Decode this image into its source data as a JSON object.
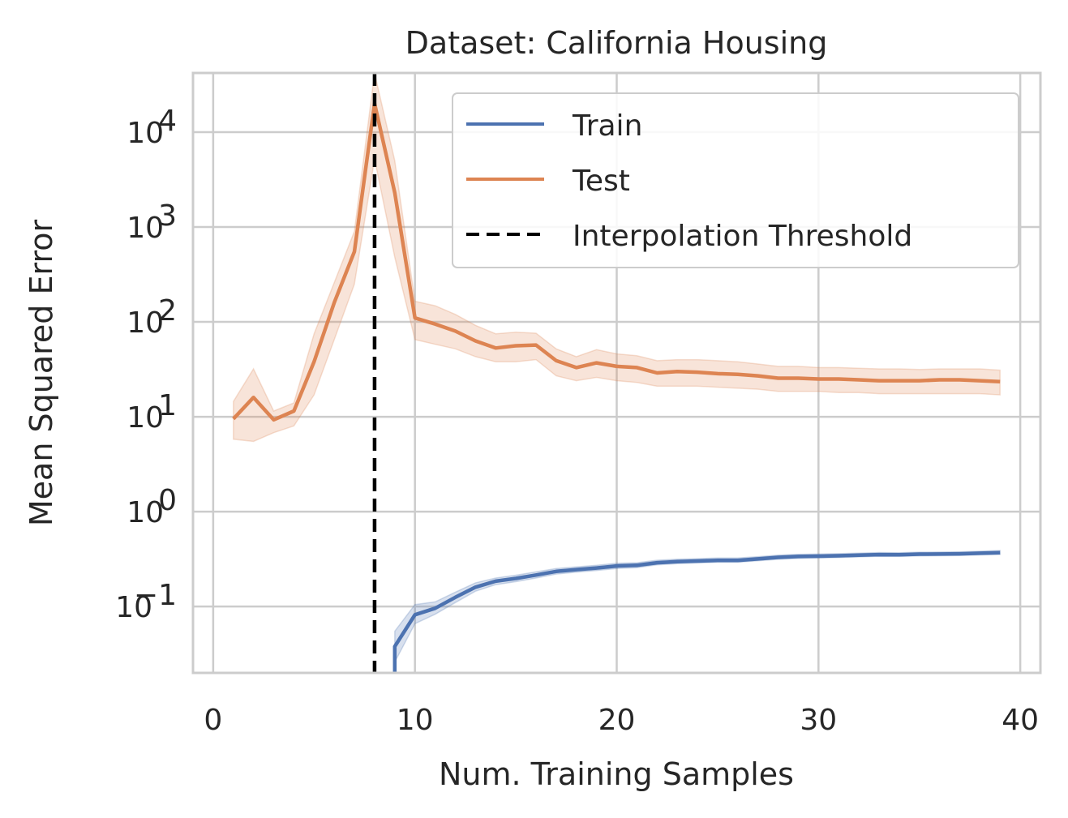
{
  "chart_data": {
    "type": "line",
    "title": "Dataset: California Housing",
    "xlabel": "Num. Training Samples",
    "ylabel": "Mean Squared Error",
    "yscale": "log",
    "xlim": [
      -1,
      41
    ],
    "ylim": [
      0.02,
      42000
    ],
    "xticks": [
      0,
      10,
      20,
      30,
      40
    ],
    "yticks": [
      {
        "value": 0.1,
        "base": "10",
        "exp": "−1"
      },
      {
        "value": 1,
        "base": "10",
        "exp": "0"
      },
      {
        "value": 10,
        "base": "10",
        "exp": "1"
      },
      {
        "value": 100,
        "base": "10",
        "exp": "2"
      },
      {
        "value": 1000,
        "base": "10",
        "exp": "3"
      },
      {
        "value": 10000,
        "base": "10",
        "exp": "4"
      }
    ],
    "grid": true,
    "legend_position": "upper-right",
    "series": [
      {
        "name": "Train",
        "color": "#4c72b0",
        "x": [
          9,
          9,
          10,
          11,
          12,
          13,
          14,
          15,
          16,
          17,
          18,
          19,
          20,
          21,
          22,
          23,
          24,
          25,
          26,
          27,
          28,
          29,
          30,
          31,
          32,
          33,
          34,
          35,
          36,
          37,
          38,
          39
        ],
        "y": [
          0.018,
          0.038,
          0.082,
          0.096,
          0.125,
          0.16,
          0.185,
          0.198,
          0.215,
          0.235,
          0.245,
          0.255,
          0.268,
          0.272,
          0.29,
          0.298,
          0.302,
          0.307,
          0.307,
          0.318,
          0.33,
          0.337,
          0.34,
          0.343,
          0.348,
          0.353,
          0.352,
          0.357,
          0.358,
          0.36,
          0.365,
          0.37
        ],
        "lower": [
          0.018,
          0.026,
          0.066,
          0.083,
          0.11,
          0.145,
          0.17,
          0.183,
          0.2,
          0.22,
          0.23,
          0.24,
          0.252,
          0.257,
          0.275,
          0.283,
          0.288,
          0.293,
          0.293,
          0.303,
          0.315,
          0.322,
          0.325,
          0.328,
          0.333,
          0.338,
          0.337,
          0.342,
          0.343,
          0.345,
          0.35,
          0.354
        ],
        "upper": [
          0.018,
          0.055,
          0.105,
          0.112,
          0.142,
          0.178,
          0.2,
          0.214,
          0.232,
          0.252,
          0.262,
          0.272,
          0.286,
          0.29,
          0.308,
          0.316,
          0.32,
          0.325,
          0.325,
          0.336,
          0.348,
          0.355,
          0.358,
          0.361,
          0.366,
          0.371,
          0.37,
          0.375,
          0.376,
          0.378,
          0.383,
          0.39
        ]
      },
      {
        "name": "Test",
        "color": "#dd8452",
        "x": [
          1,
          2,
          3,
          4,
          5,
          6,
          7,
          8,
          9,
          10,
          11,
          12,
          13,
          14,
          15,
          16,
          17,
          18,
          19,
          20,
          21,
          22,
          23,
          24,
          25,
          26,
          27,
          28,
          29,
          30,
          31,
          32,
          33,
          34,
          35,
          36,
          37,
          38,
          39
        ],
        "y": [
          9.5,
          16,
          9.3,
          11.5,
          38,
          160,
          550,
          20000,
          2300,
          110,
          95,
          80,
          63,
          53,
          56,
          57,
          39,
          33,
          37,
          34,
          33,
          29,
          30,
          29.5,
          28.5,
          28,
          27,
          25.5,
          25.5,
          25,
          25,
          24.5,
          24,
          24,
          24,
          24.5,
          24.5,
          24,
          23.5
        ],
        "lower": [
          5.8,
          5.5,
          6.8,
          8,
          17,
          65,
          250,
          5200,
          480,
          65,
          58,
          52,
          43,
          38,
          38,
          40,
          27,
          24,
          26,
          24,
          23,
          21,
          21,
          21,
          20.5,
          20,
          19.5,
          18.5,
          18.5,
          18.5,
          18,
          18,
          17.5,
          17.5,
          17.5,
          17.5,
          17.5,
          17.5,
          17
        ],
        "upper": [
          14.5,
          32,
          11.5,
          14,
          75,
          260,
          900,
          42000,
          5000,
          165,
          148,
          120,
          92,
          75,
          78,
          76,
          52,
          43,
          51,
          46,
          44,
          39,
          40,
          40,
          39,
          38,
          36,
          34,
          34,
          33,
          33,
          32.5,
          32,
          32,
          31.5,
          32,
          32,
          32,
          31
        ]
      }
    ],
    "vline": {
      "name": "Interpolation Threshold",
      "x": 8,
      "color": "#000000"
    }
  }
}
